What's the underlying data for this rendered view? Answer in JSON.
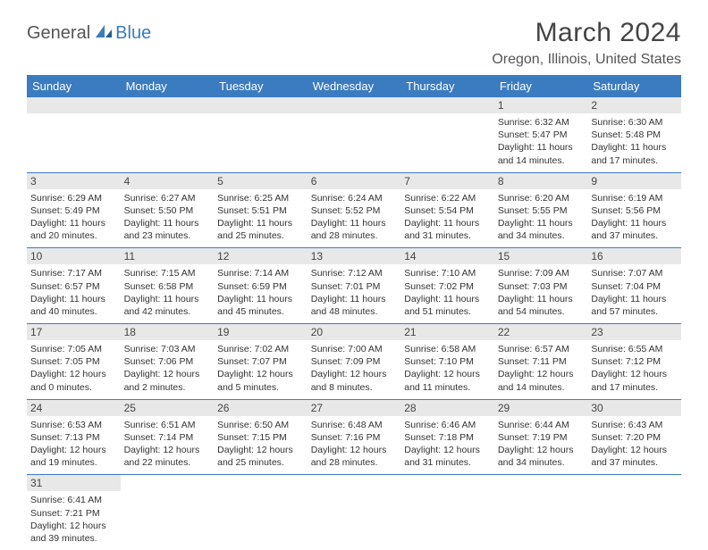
{
  "logo": {
    "part1": "General",
    "part2": "Blue"
  },
  "title": "March 2024",
  "location": "Oregon, Illinois, United States",
  "colors": {
    "header_bg": "#3b7bbf",
    "header_text": "#ffffff",
    "daynum_bg": "#e8e8e8",
    "border": "#3b7bbf",
    "body_text": "#333333",
    "logo_gray": "#555555",
    "logo_blue": "#3b7bbf"
  },
  "weekdays": [
    "Sunday",
    "Monday",
    "Tuesday",
    "Wednesday",
    "Thursday",
    "Friday",
    "Saturday"
  ],
  "weeks": [
    [
      null,
      null,
      null,
      null,
      null,
      {
        "n": "1",
        "sunrise": "Sunrise: 6:32 AM",
        "sunset": "Sunset: 5:47 PM",
        "daylight": "Daylight: 11 hours and 14 minutes."
      },
      {
        "n": "2",
        "sunrise": "Sunrise: 6:30 AM",
        "sunset": "Sunset: 5:48 PM",
        "daylight": "Daylight: 11 hours and 17 minutes."
      }
    ],
    [
      {
        "n": "3",
        "sunrise": "Sunrise: 6:29 AM",
        "sunset": "Sunset: 5:49 PM",
        "daylight": "Daylight: 11 hours and 20 minutes."
      },
      {
        "n": "4",
        "sunrise": "Sunrise: 6:27 AM",
        "sunset": "Sunset: 5:50 PM",
        "daylight": "Daylight: 11 hours and 23 minutes."
      },
      {
        "n": "5",
        "sunrise": "Sunrise: 6:25 AM",
        "sunset": "Sunset: 5:51 PM",
        "daylight": "Daylight: 11 hours and 25 minutes."
      },
      {
        "n": "6",
        "sunrise": "Sunrise: 6:24 AM",
        "sunset": "Sunset: 5:52 PM",
        "daylight": "Daylight: 11 hours and 28 minutes."
      },
      {
        "n": "7",
        "sunrise": "Sunrise: 6:22 AM",
        "sunset": "Sunset: 5:54 PM",
        "daylight": "Daylight: 11 hours and 31 minutes."
      },
      {
        "n": "8",
        "sunrise": "Sunrise: 6:20 AM",
        "sunset": "Sunset: 5:55 PM",
        "daylight": "Daylight: 11 hours and 34 minutes."
      },
      {
        "n": "9",
        "sunrise": "Sunrise: 6:19 AM",
        "sunset": "Sunset: 5:56 PM",
        "daylight": "Daylight: 11 hours and 37 minutes."
      }
    ],
    [
      {
        "n": "10",
        "sunrise": "Sunrise: 7:17 AM",
        "sunset": "Sunset: 6:57 PM",
        "daylight": "Daylight: 11 hours and 40 minutes."
      },
      {
        "n": "11",
        "sunrise": "Sunrise: 7:15 AM",
        "sunset": "Sunset: 6:58 PM",
        "daylight": "Daylight: 11 hours and 42 minutes."
      },
      {
        "n": "12",
        "sunrise": "Sunrise: 7:14 AM",
        "sunset": "Sunset: 6:59 PM",
        "daylight": "Daylight: 11 hours and 45 minutes."
      },
      {
        "n": "13",
        "sunrise": "Sunrise: 7:12 AM",
        "sunset": "Sunset: 7:01 PM",
        "daylight": "Daylight: 11 hours and 48 minutes."
      },
      {
        "n": "14",
        "sunrise": "Sunrise: 7:10 AM",
        "sunset": "Sunset: 7:02 PM",
        "daylight": "Daylight: 11 hours and 51 minutes."
      },
      {
        "n": "15",
        "sunrise": "Sunrise: 7:09 AM",
        "sunset": "Sunset: 7:03 PM",
        "daylight": "Daylight: 11 hours and 54 minutes."
      },
      {
        "n": "16",
        "sunrise": "Sunrise: 7:07 AM",
        "sunset": "Sunset: 7:04 PM",
        "daylight": "Daylight: 11 hours and 57 minutes."
      }
    ],
    [
      {
        "n": "17",
        "sunrise": "Sunrise: 7:05 AM",
        "sunset": "Sunset: 7:05 PM",
        "daylight": "Daylight: 12 hours and 0 minutes."
      },
      {
        "n": "18",
        "sunrise": "Sunrise: 7:03 AM",
        "sunset": "Sunset: 7:06 PM",
        "daylight": "Daylight: 12 hours and 2 minutes."
      },
      {
        "n": "19",
        "sunrise": "Sunrise: 7:02 AM",
        "sunset": "Sunset: 7:07 PM",
        "daylight": "Daylight: 12 hours and 5 minutes."
      },
      {
        "n": "20",
        "sunrise": "Sunrise: 7:00 AM",
        "sunset": "Sunset: 7:09 PM",
        "daylight": "Daylight: 12 hours and 8 minutes."
      },
      {
        "n": "21",
        "sunrise": "Sunrise: 6:58 AM",
        "sunset": "Sunset: 7:10 PM",
        "daylight": "Daylight: 12 hours and 11 minutes."
      },
      {
        "n": "22",
        "sunrise": "Sunrise: 6:57 AM",
        "sunset": "Sunset: 7:11 PM",
        "daylight": "Daylight: 12 hours and 14 minutes."
      },
      {
        "n": "23",
        "sunrise": "Sunrise: 6:55 AM",
        "sunset": "Sunset: 7:12 PM",
        "daylight": "Daylight: 12 hours and 17 minutes."
      }
    ],
    [
      {
        "n": "24",
        "sunrise": "Sunrise: 6:53 AM",
        "sunset": "Sunset: 7:13 PM",
        "daylight": "Daylight: 12 hours and 19 minutes."
      },
      {
        "n": "25",
        "sunrise": "Sunrise: 6:51 AM",
        "sunset": "Sunset: 7:14 PM",
        "daylight": "Daylight: 12 hours and 22 minutes."
      },
      {
        "n": "26",
        "sunrise": "Sunrise: 6:50 AM",
        "sunset": "Sunset: 7:15 PM",
        "daylight": "Daylight: 12 hours and 25 minutes."
      },
      {
        "n": "27",
        "sunrise": "Sunrise: 6:48 AM",
        "sunset": "Sunset: 7:16 PM",
        "daylight": "Daylight: 12 hours and 28 minutes."
      },
      {
        "n": "28",
        "sunrise": "Sunrise: 6:46 AM",
        "sunset": "Sunset: 7:18 PM",
        "daylight": "Daylight: 12 hours and 31 minutes."
      },
      {
        "n": "29",
        "sunrise": "Sunrise: 6:44 AM",
        "sunset": "Sunset: 7:19 PM",
        "daylight": "Daylight: 12 hours and 34 minutes."
      },
      {
        "n": "30",
        "sunrise": "Sunrise: 6:43 AM",
        "sunset": "Sunset: 7:20 PM",
        "daylight": "Daylight: 12 hours and 37 minutes."
      }
    ],
    [
      {
        "n": "31",
        "sunrise": "Sunrise: 6:41 AM",
        "sunset": "Sunset: 7:21 PM",
        "daylight": "Daylight: 12 hours and 39 minutes."
      },
      null,
      null,
      null,
      null,
      null,
      null
    ]
  ]
}
